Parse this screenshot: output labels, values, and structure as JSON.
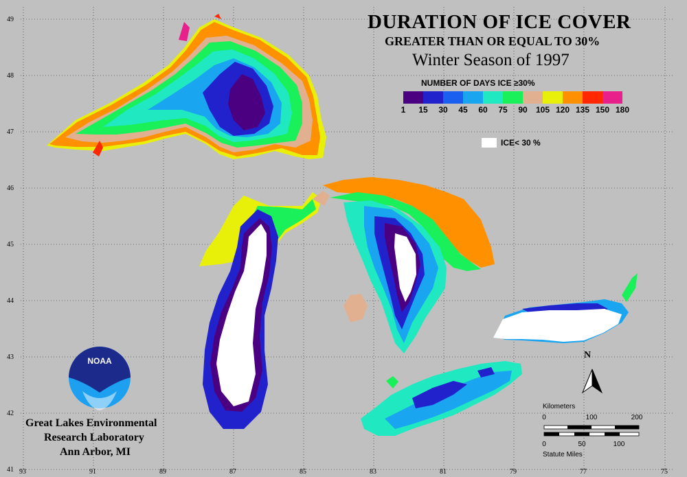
{
  "title": {
    "line1": "DURATION OF ICE COVER",
    "line2": "GREATER THAN OR EQUAL TO 30%",
    "line3": "Winter Season of 1997"
  },
  "legend": {
    "title": "NUMBER OF DAYS ICE ≥30%",
    "colors": [
      "#4b0082",
      "#2222cc",
      "#1a5ff0",
      "#19a5f0",
      "#20e8c0",
      "#19f05a",
      "#e0b090",
      "#e8f00a",
      "#ff9000",
      "#ff2800",
      "#e8208c"
    ],
    "ticks": [
      "1",
      "15",
      "30",
      "45",
      "60",
      "75",
      "90",
      "105",
      "120",
      "135",
      "150",
      "180"
    ],
    "ice_label": "ICE< 30 %"
  },
  "axes": {
    "lat": [
      "49",
      "48",
      "47",
      "46",
      "45",
      "44",
      "43",
      "42",
      "41"
    ],
    "lon": [
      "93",
      "91",
      "89",
      "87",
      "85",
      "83",
      "81",
      "79",
      "77",
      "75"
    ]
  },
  "lab": {
    "line1": "Great Lakes Environmental",
    "line2": "Research Laboratory",
    "line3": "Ann Arbor, MI",
    "logo_text": "NOAA"
  },
  "scale": {
    "km_label": "Kilometers",
    "km_ticks": [
      "0",
      "100",
      "200"
    ],
    "mi_label": "Statute Miles",
    "mi_ticks": [
      "0",
      "50",
      "100"
    ],
    "north": "N"
  }
}
